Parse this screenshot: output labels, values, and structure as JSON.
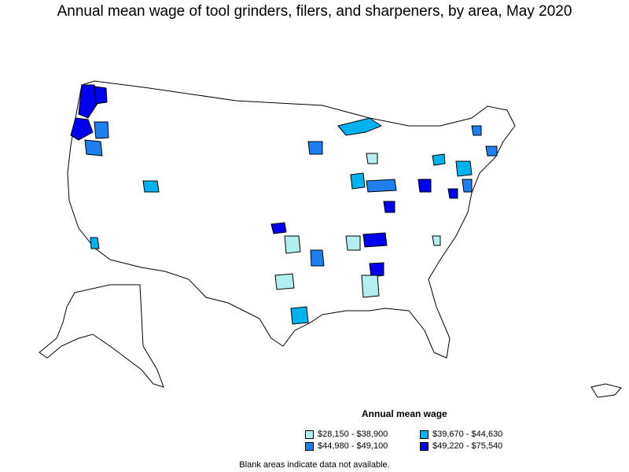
{
  "title": "Annual mean wage of tool grinders, filers, and sharpeners, by area, May 2020",
  "legend": {
    "title": "Annual mean wage",
    "items": [
      {
        "label": "$28,150 - $38,900",
        "color": "#b2eeee"
      },
      {
        "label": "$39,670 - $44,630",
        "color": "#00b2ee"
      },
      {
        "label": "$44,980 - $49,100",
        "color": "#1e7fee"
      },
      {
        "label": "$49,220 - $75,540",
        "color": "#0000ee"
      }
    ]
  },
  "footnote": "Blank areas indicate data not available.",
  "colors": {
    "tier1": "#b2eeee",
    "tier2": "#00b2ee",
    "tier3": "#1e7fee",
    "tier4": "#0000ee",
    "border": "#000000",
    "empty": "#ffffff"
  }
}
